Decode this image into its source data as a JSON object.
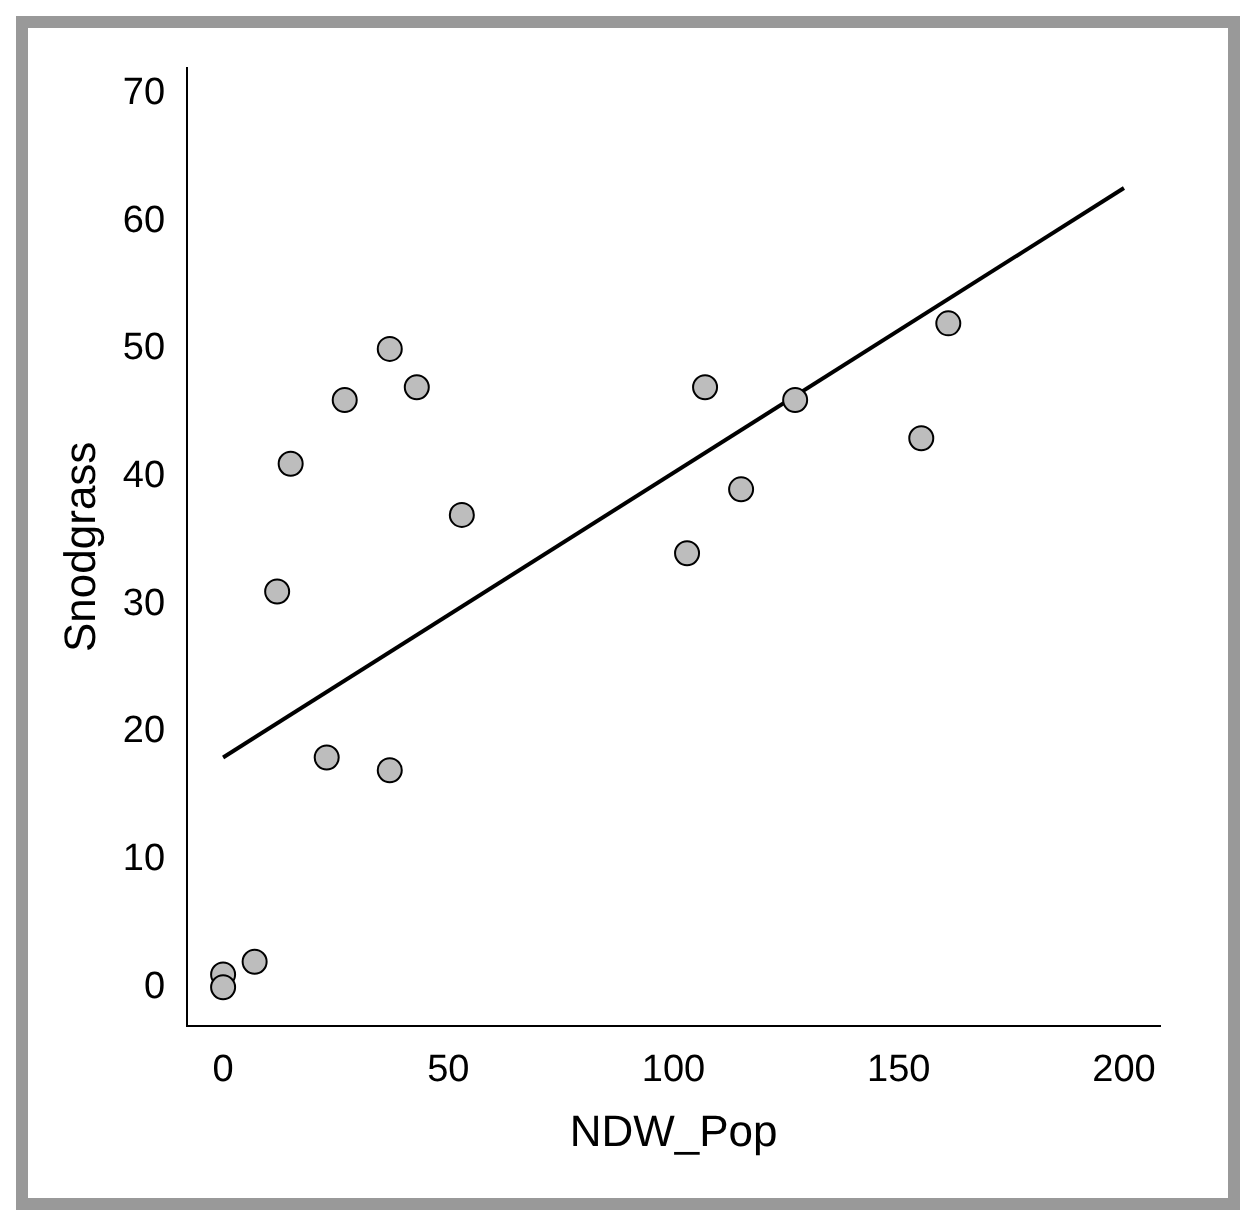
{
  "chart_data": {
    "type": "scatter",
    "xlabel": "NDW_Pop",
    "ylabel": "Snodgrass",
    "xlim": [
      -8,
      208
    ],
    "ylim": [
      -3,
      72
    ],
    "xticks": [
      0,
      50,
      100,
      150,
      200
    ],
    "yticks": [
      0,
      10,
      20,
      30,
      40,
      50,
      60,
      70
    ],
    "grid": false,
    "legend": false,
    "marker": "circle",
    "series": [
      {
        "color": "#bdbdbd",
        "x": [
          0,
          0,
          7,
          12,
          15,
          23,
          27,
          37,
          43,
          37,
          53,
          103,
          107,
          115,
          127,
          155,
          161
        ],
        "values": [
          1,
          0,
          2,
          31,
          41,
          18,
          46,
          50,
          47,
          17,
          37,
          34,
          47,
          39,
          46,
          43,
          52
        ]
      },
      {
        "type": "line",
        "color": "#000000",
        "marker": "none",
        "line_style": "solid",
        "x": [
          0,
          200
        ],
        "values": [
          18,
          62.6
        ]
      }
    ]
  }
}
